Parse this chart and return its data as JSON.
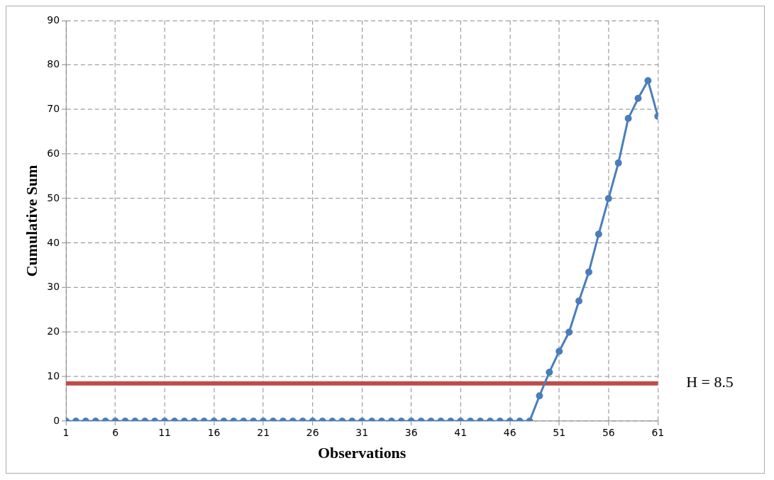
{
  "chart_data": {
    "type": "line",
    "xlabel": "Observations",
    "ylabel": "Cumulative Sum",
    "x": [
      1,
      2,
      3,
      4,
      5,
      6,
      7,
      8,
      9,
      10,
      11,
      12,
      13,
      14,
      15,
      16,
      17,
      18,
      19,
      20,
      21,
      22,
      23,
      24,
      25,
      26,
      27,
      28,
      29,
      30,
      31,
      32,
      33,
      34,
      35,
      36,
      37,
      38,
      39,
      40,
      41,
      42,
      43,
      44,
      45,
      46,
      47,
      48,
      49,
      50,
      51,
      52,
      53,
      54,
      55,
      56,
      57,
      58,
      59,
      60,
      61
    ],
    "series": [
      {
        "color": "#4a7ebb",
        "values": [
          0,
          0,
          0,
          0,
          0,
          0,
          0,
          0,
          0,
          0,
          0,
          0,
          0,
          0,
          0,
          0,
          0,
          0,
          0,
          0,
          0,
          0,
          0,
          0,
          0,
          0,
          0,
          0,
          0,
          0,
          0,
          0,
          0,
          0,
          0,
          0,
          0,
          0,
          0,
          0,
          0,
          0,
          0,
          0,
          0,
          0,
          0,
          0,
          5.7,
          11,
          15.7,
          20,
          27,
          33.5,
          42,
          50,
          58,
          68,
          72.5,
          76.5,
          68.5
        ]
      }
    ],
    "xlim": [
      1,
      61
    ],
    "xticks": [
      1,
      6,
      11,
      16,
      21,
      26,
      31,
      36,
      41,
      46,
      51,
      56,
      61
    ],
    "ylim": [
      0,
      90
    ],
    "yticks": [
      0,
      10,
      20,
      30,
      40,
      50,
      60,
      70,
      80,
      90
    ],
    "grid": true,
    "legend": false,
    "marker": "circle",
    "line_style": "solid",
    "ref_lines": [
      {
        "axis": "y",
        "value": 8.5,
        "label": "H = 8.5",
        "color": "#be4b48"
      }
    ]
  }
}
